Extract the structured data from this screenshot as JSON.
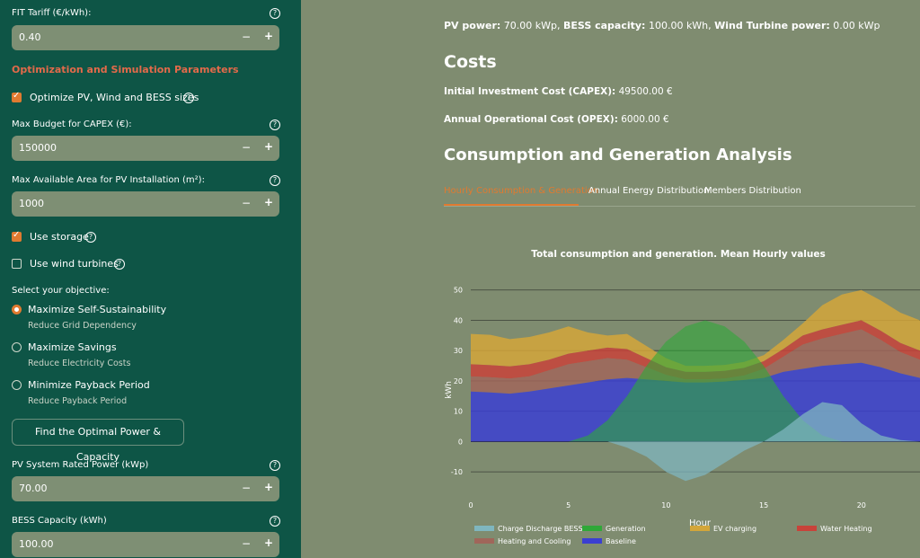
{
  "sidebar": {
    "fit_label": "FIT Tariff (€/kWh):",
    "fit_value": "0.40",
    "section_title": "Optimization and Simulation Parameters",
    "optimize_label": "Optimize PV, Wind and BESS sizes",
    "budget_label": "Max Budget for CAPEX (€):",
    "budget_value": "150000",
    "area_label": "Max Available Area for PV Installation (m²):",
    "area_value": "1000",
    "storage_label": "Use storage",
    "wind_label": "Use wind turbines",
    "objective_label": "Select your objective:",
    "objectives": [
      {
        "title": "Maximize Self-Sustainability",
        "subtitle": "Reduce Grid Dependency",
        "selected": true
      },
      {
        "title": "Maximize Savings",
        "subtitle": "Reduce Electricity Costs",
        "selected": false
      },
      {
        "title": "Minimize Payback Period",
        "subtitle": "Reduce Payback Period",
        "selected": false
      }
    ],
    "find_button": "Find the Optimal Power & Capacity",
    "pv_label": "PV System Rated Power (kWp)",
    "pv_value": "70.00",
    "bess_label": "BESS Capacity (kWh)",
    "bess_value": "100.00",
    "minus": "−",
    "plus": "+",
    "help": "?",
    "accent_color": "#e07a30"
  },
  "main": {
    "summary": {
      "pv_label": "PV power:",
      "pv_value": "70.00 kWp,",
      "bess_label": "BESS capacity:",
      "bess_value": "100.00 kWh,",
      "wind_label": "Wind Turbine power:",
      "wind_value": "0.00 kWp"
    },
    "costs_heading": "Costs",
    "capex_label": "Initial Investment Cost (CAPEX):",
    "capex_value": "49500.00 €",
    "opex_label": "Annual Operational Cost (OPEX):",
    "opex_value": "6000.00 €",
    "analysis_heading": "Consumption and Generation Analysis",
    "tabs": [
      "Hourly Consumption & Generation",
      "Annual Energy Distribution",
      "Members Distribution"
    ]
  },
  "chart_data": {
    "type": "area",
    "title": "Total consumption and generation. Mean Hourly values",
    "xlabel": "Hour",
    "ylabel": "kWh",
    "xlim": [
      0,
      23
    ],
    "ylim": [
      -15,
      52
    ],
    "xticks": [
      0,
      5,
      10,
      15,
      20
    ],
    "yticks": [
      -10,
      0,
      10,
      20,
      30,
      40,
      50
    ],
    "grid": true,
    "legend_position": "bottom",
    "x": [
      0,
      1,
      2,
      3,
      4,
      5,
      6,
      7,
      8,
      9,
      10,
      11,
      12,
      13,
      14,
      15,
      16,
      17,
      18,
      19,
      20,
      21,
      22,
      23
    ],
    "series": [
      {
        "name": "Baseline",
        "color": "#3b3fd1",
        "values": [
          16.5,
          16.2,
          15.8,
          16.5,
          17.5,
          18.5,
          19.5,
          20.5,
          21,
          20.5,
          20,
          19.5,
          19.5,
          19.8,
          20.3,
          21,
          23,
          24,
          25,
          25.5,
          26,
          24.5,
          22.5,
          21
        ]
      },
      {
        "name": "Heating and Cooling",
        "color": "#a0665a",
        "values": [
          5,
          5,
          5,
          5,
          6,
          7,
          7,
          7,
          6,
          4,
          2,
          1,
          1,
          1,
          1.5,
          3,
          5,
          8,
          9,
          10,
          11,
          9,
          7,
          6
        ]
      },
      {
        "name": "Water Heating",
        "color": "#c8433a",
        "values": [
          4,
          4,
          4,
          4,
          3.5,
          3.5,
          3.5,
          3.5,
          3.5,
          3,
          2.5,
          2.5,
          2.5,
          2.5,
          2.5,
          2.5,
          2.5,
          3,
          3,
          3,
          3,
          3,
          3,
          3
        ]
      },
      {
        "name": "EV charging",
        "color": "#d3a63a",
        "values": [
          10,
          10,
          9,
          9,
          9,
          9,
          6,
          4,
          5,
          4,
          3,
          2,
          2,
          2,
          2,
          2,
          3,
          4,
          8,
          10,
          10,
          10,
          10,
          10
        ]
      },
      {
        "name": "Generation",
        "color": "#2fa838",
        "values": [
          0,
          0,
          0,
          0,
          0,
          0,
          2,
          7,
          15,
          25,
          33,
          38,
          40,
          38,
          33,
          25,
          15,
          7,
          2,
          0,
          0,
          0,
          0,
          0
        ]
      },
      {
        "name": "Charge Discharge BESS",
        "color": "#7fb6bf",
        "values": [
          0,
          0,
          0,
          0,
          0,
          0,
          0,
          0,
          -2,
          -5,
          -10,
          -13,
          -11,
          -7,
          -3,
          0,
          4,
          9,
          13,
          12,
          6,
          2,
          0.5,
          0
        ]
      }
    ]
  }
}
